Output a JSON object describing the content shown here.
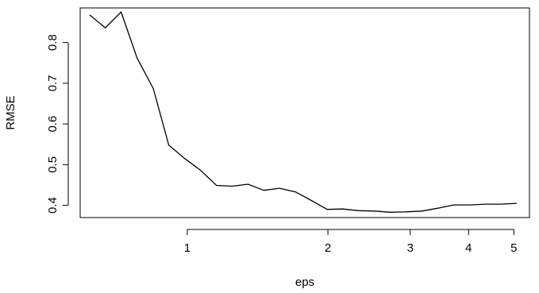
{
  "chart_data": {
    "type": "line",
    "xlabel": "eps",
    "ylabel": "RMSE",
    "x_scale": "log",
    "xlim": [
      0.59,
      5.4
    ],
    "ylim": [
      0.37,
      0.885
    ],
    "x_ticks": [
      1,
      2,
      3,
      4,
      5
    ],
    "x_tick_labels": [
      "1",
      "2",
      "3",
      "4",
      "5"
    ],
    "y_ticks": [
      0.4,
      0.5,
      0.6,
      0.7,
      0.8
    ],
    "y_tick_labels": [
      "0.4",
      "0.5",
      "0.6",
      "0.7",
      "0.8"
    ],
    "grid": false,
    "legend": "none",
    "line_color": "#000000",
    "series": [
      {
        "x": [
          0.618,
          0.668,
          0.722,
          0.781,
          0.846,
          0.913,
          0.988,
          1.068,
          1.155,
          1.248,
          1.349,
          1.458,
          1.576,
          1.705,
          1.843,
          1.992,
          2.153,
          2.328,
          2.517,
          2.721,
          2.942,
          3.18,
          3.437,
          3.716,
          4.016,
          4.342,
          4.694,
          5.073
        ],
        "y": [
          0.868,
          0.836,
          0.875,
          0.762,
          0.687,
          0.548,
          0.515,
          0.486,
          0.449,
          0.447,
          0.452,
          0.437,
          0.442,
          0.433,
          0.412,
          0.39,
          0.391,
          0.387,
          0.386,
          0.383,
          0.384,
          0.386,
          0.393,
          0.401,
          0.401,
          0.403,
          0.403,
          0.405
        ]
      }
    ]
  }
}
